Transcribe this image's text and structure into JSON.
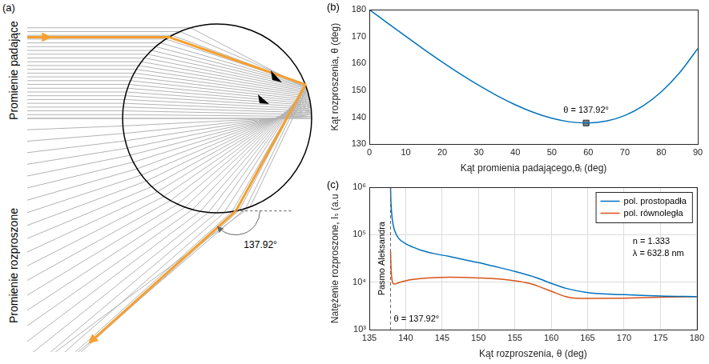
{
  "diagram": {
    "panel": "(a)",
    "labels": {
      "incident": "Promienie padające",
      "scattered": "Promienie rozproszone",
      "angle": "137.92°"
    }
  },
  "chart_data": [
    {
      "panel": "(b)",
      "type": "line",
      "x_label": "Kąt promienia padającego,θᵢ (deg)",
      "y_label": "Kąt rozproszenia, θ (deg)",
      "x": [
        0,
        5,
        10,
        15,
        20,
        25,
        30,
        35,
        40,
        45,
        50,
        55,
        60,
        65,
        70,
        75,
        80,
        85,
        90
      ],
      "values": [
        180,
        175.0,
        170.06,
        165.22,
        160.53,
        156.06,
        151.88,
        148.06,
        144.68,
        141.84,
        139.68,
        138.32,
        137.92,
        138.64,
        140.68,
        144.24,
        149.48,
        156.52,
        165.56
      ],
      "color": "#0072bd",
      "xlim": [
        0,
        90
      ],
      "xticks": [
        0,
        10,
        20,
        30,
        40,
        50,
        60,
        70,
        80,
        90
      ],
      "ylim": [
        130,
        180
      ],
      "yticks": [
        130,
        140,
        150,
        160,
        170,
        180
      ],
      "grid": false,
      "annotations": [
        {
          "x": 59.4,
          "y": 137.92,
          "text": "θ = 137.92°",
          "marker": "square",
          "color": "#808080"
        }
      ]
    },
    {
      "panel": "(c)",
      "type": "line",
      "log": "y",
      "x_label": "Kąt rozproszenia, θ (deg)",
      "y_label": "Natężenie rozproszone, Iₛ (a.u",
      "series": [
        {
          "name": "pol. prostopadła",
          "color": "#0072bd",
          "x": [
            137.92,
            137.95,
            138,
            138.1,
            138.25,
            138.5,
            139,
            140,
            141,
            142,
            144,
            146,
            148,
            150,
            152,
            155,
            158,
            160,
            162,
            165,
            170,
            175,
            180
          ],
          "values": [
            1000000,
            600000,
            400000,
            250000,
            170000,
            120000,
            85000,
            65000,
            55000,
            48000,
            40000,
            35000,
            30000,
            26000,
            22000,
            17000,
            12500,
            9500,
            7500,
            6100,
            5500,
            5150,
            5000
          ]
        },
        {
          "name": "pol. równoległa",
          "color": "#d95319",
          "x": [
            137.92,
            137.95,
            138,
            138.1,
            138.25,
            138.5,
            139,
            140,
            141,
            142,
            144,
            146,
            148,
            150,
            152,
            155,
            157,
            158,
            160,
            162,
            163,
            165,
            170,
            175,
            180
          ],
          "values": [
            45000,
            30000,
            18000,
            12000,
            9500,
            9200,
            9800,
            10800,
            11500,
            12000,
            12600,
            12800,
            12700,
            12400,
            12000,
            10800,
            9500,
            8500,
            6500,
            5000,
            4700,
            4600,
            4650,
            4850,
            5000
          ]
        }
      ],
      "xlim": [
        135,
        180
      ],
      "xticks": [
        135,
        140,
        145,
        150,
        155,
        160,
        165,
        170,
        175,
        180
      ],
      "ylim": [
        1000,
        1000000
      ],
      "yticks": [
        {
          "value": 1000,
          "label": "10³"
        },
        {
          "value": 10000,
          "label": "10⁴"
        },
        {
          "value": 100000,
          "label": "10⁵"
        },
        {
          "value": 1000000,
          "label": "10⁶"
        }
      ],
      "grid": true,
      "legend": "upper right",
      "annotations": [
        {
          "x": 137.92,
          "text": "Pasmo Aleksandra",
          "line_style": "dashed"
        },
        {
          "x": 137.92,
          "text": "θ = 137.92°"
        },
        {
          "text": "n = 1.333"
        },
        {
          "text": "λ = 632.8 nm"
        }
      ]
    }
  ]
}
